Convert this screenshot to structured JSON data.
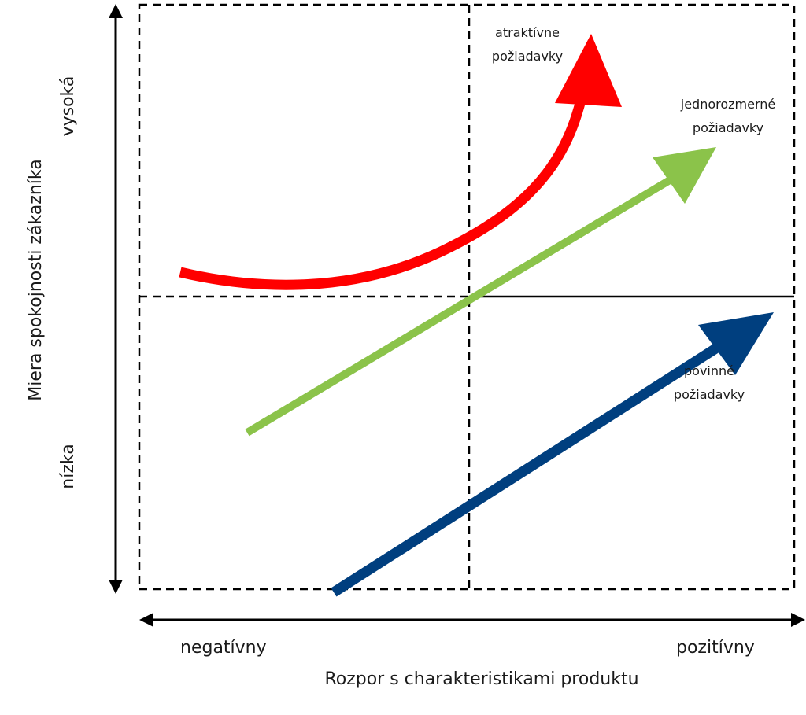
{
  "diagram": {
    "x_axis": {
      "title": "Rozpor s charakteristikami produktu",
      "low_label": "negatívny",
      "high_label": "pozitívny"
    },
    "y_axis": {
      "title": "Miera spokojnosti zákazníka",
      "low_label": "nízka",
      "high_label": "vysoká"
    },
    "curves": [
      {
        "key": "attractive",
        "label_line1": "atraktívne",
        "label_line2": "požiadavky",
        "color": "#ff0000"
      },
      {
        "key": "one_dimensional",
        "label_line1": "jednorozmerné",
        "label_line2": "požiadavky",
        "color": "#8bc34a"
      },
      {
        "key": "must_be",
        "label_line1": "povinné",
        "label_line2": "požiadavky",
        "color": "#003f7f"
      }
    ]
  }
}
